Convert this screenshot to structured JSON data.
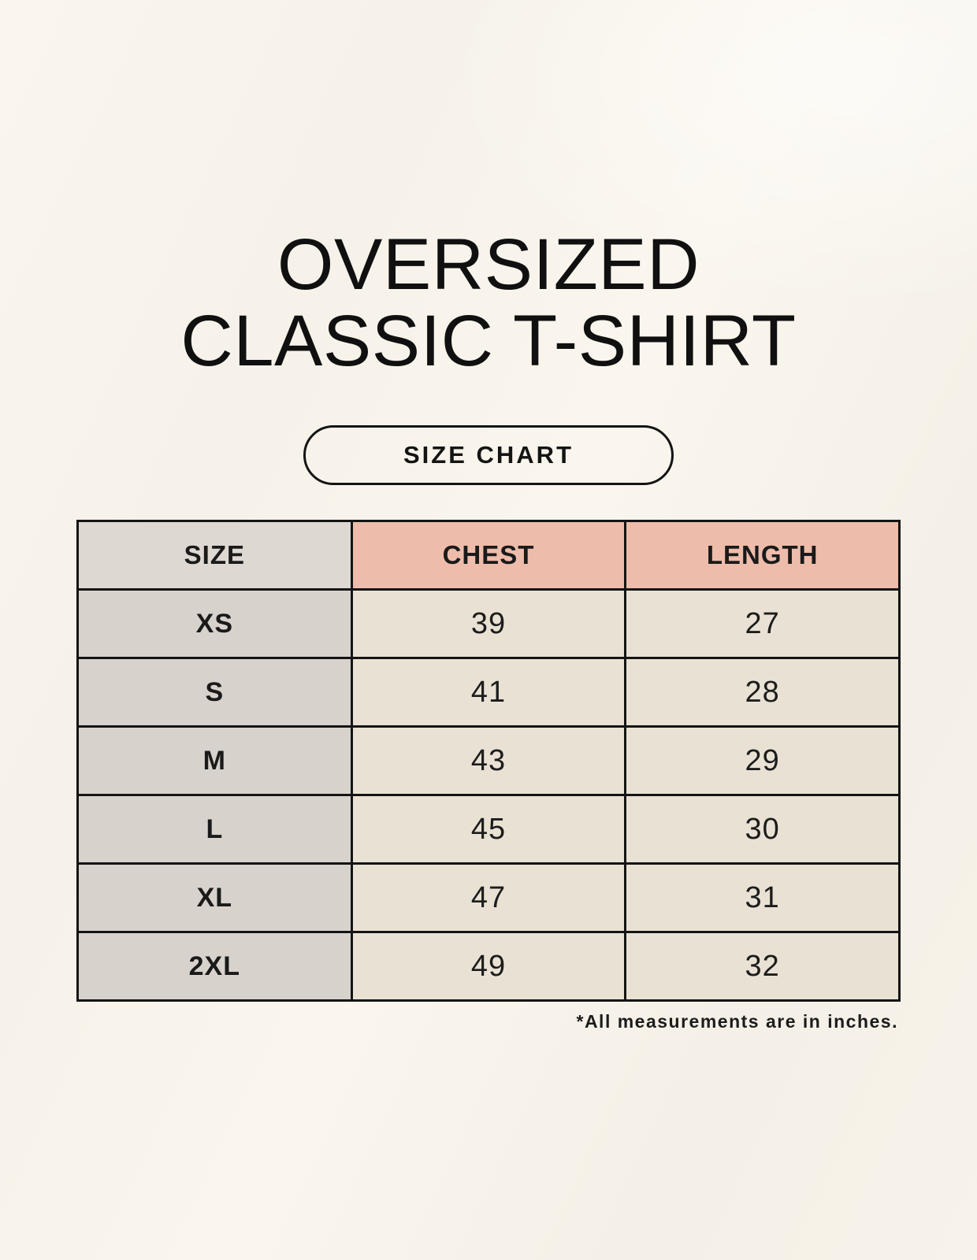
{
  "title": {
    "line1": "OVERSIZED",
    "line2": "CLASSIC T-SHIRT"
  },
  "button": {
    "label": "SIZE CHART"
  },
  "table": {
    "headers": [
      "SIZE",
      "CHEST",
      "LENGTH"
    ],
    "rows": [
      {
        "size": "XS",
        "chest": "39",
        "length": "27"
      },
      {
        "size": "S",
        "chest": "41",
        "length": "28"
      },
      {
        "size": "M",
        "chest": "43",
        "length": "29"
      },
      {
        "size": "L",
        "chest": "45",
        "length": "30"
      },
      {
        "size": "XL",
        "chest": "47",
        "length": "31"
      },
      {
        "size": "2XL",
        "chest": "49",
        "length": "32"
      }
    ]
  },
  "footnote": "*All measurements are in inches.",
  "colors": {
    "accent_pink": "#eebcab",
    "header_gray": "#ded8d3",
    "row_label_gray": "#d8d2cd",
    "cell_cream": "#e9e2d4",
    "border_black": "#141414",
    "background_cream": "#f8f4ec",
    "text_black": "#1a1a1a"
  },
  "chart_data": {
    "type": "table",
    "title": "OVERSIZED CLASSIC T-SHIRT",
    "subtitle": "SIZE CHART",
    "columns": [
      "SIZE",
      "CHEST",
      "LENGTH"
    ],
    "rows": [
      [
        "XS",
        39,
        27
      ],
      [
        "S",
        41,
        28
      ],
      [
        "M",
        43,
        29
      ],
      [
        "L",
        45,
        30
      ],
      [
        "XL",
        47,
        31
      ],
      [
        "2XL",
        49,
        32
      ]
    ],
    "units": "inches",
    "note": "*All measurements are in inches."
  }
}
